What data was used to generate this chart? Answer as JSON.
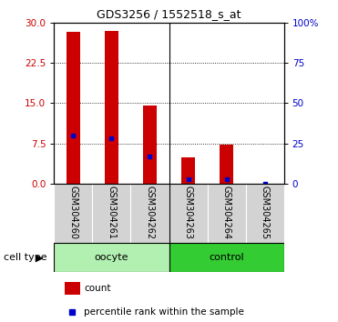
{
  "title": "GDS3256 / 1552518_s_at",
  "samples": [
    "GSM304260",
    "GSM304261",
    "GSM304262",
    "GSM304263",
    "GSM304264",
    "GSM304265"
  ],
  "counts": [
    28.2,
    28.5,
    14.6,
    4.8,
    7.2,
    0.0
  ],
  "percentile_ranks_pct": [
    30.0,
    28.0,
    17.0,
    2.5,
    2.5,
    0.0
  ],
  "n_oocyte": 3,
  "n_control": 3,
  "oocyte_color": "#b2f0b2",
  "control_color": "#33cc33",
  "sample_bg_color": "#d3d3d3",
  "bar_color": "#cc0000",
  "marker_color": "#0000cc",
  "ylim_left": [
    0,
    30
  ],
  "ylim_right": [
    0,
    100
  ],
  "yticks_left": [
    0,
    7.5,
    15,
    22.5,
    30
  ],
  "yticks_right": [
    0,
    25,
    50,
    75,
    100
  ],
  "grid_values": [
    7.5,
    15,
    22.5
  ],
  "left_axis_color": "#cc0000",
  "right_axis_color": "#0000cc",
  "bar_width": 0.35,
  "title_fontsize": 9,
  "tick_fontsize": 7.5,
  "label_fontsize": 7,
  "legend_fontsize": 7.5,
  "cell_type_fontsize": 8
}
